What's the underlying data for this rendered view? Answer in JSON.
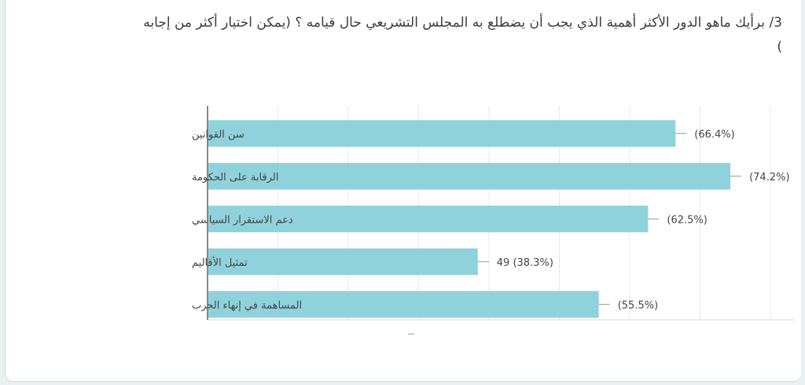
{
  "question": {
    "text": "3/ برأيك ماهو الدور الأكثر أهمية الذي يجب أن يضطلع به المجلس التشريعي حال قيامه ؟ (يمكن اختيار أكثر من إجابه )"
  },
  "colors": {
    "bar": "#8fd2dc",
    "axis": "#555555",
    "grid": "#e8e8e8",
    "text": "#444444"
  },
  "chart_data": {
    "type": "bar",
    "orientation": "horizontal",
    "categories": [
      "سن القوانين",
      "الرقابة على الحكومة",
      "دعم الاستقرار السياسي",
      "تمثيل الأقاليم",
      "المساهمة في إنهاء الحرب"
    ],
    "values": [
      66.4,
      74.2,
      62.5,
      38.3,
      55.5
    ],
    "labels": [
      "(66.4%)",
      "(74.2%)",
      "(62.5%)",
      "49 (38.3%)",
      "(55.5%)"
    ],
    "xlim": [
      0,
      80
    ],
    "grid": true,
    "legend": "none",
    "title": "",
    "xlabel": "",
    "ylabel": ""
  }
}
